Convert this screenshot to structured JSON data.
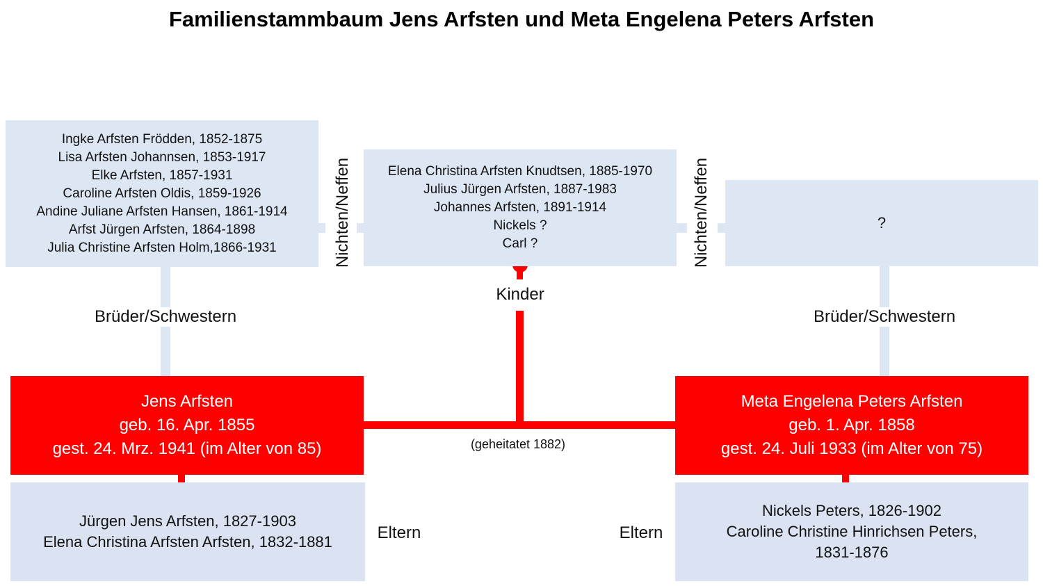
{
  "title": "Familienstammbaum Jens Arfsten und Meta Engelena Peters Arfsten",
  "left_siblings": {
    "names": [
      "Ingke Arfsten Frödden, 1852-1875",
      "Lisa Arfsten Johannsen, 1853-1917",
      "Elke Arfsten, 1857-1931",
      "Caroline Arfsten Oldis, 1859-1926",
      "Andine Juliane Arfsten Hansen, 1861-1914",
      "Arfst Jürgen Arfsten, 1864-1898",
      "Julia Christine Arfsten Holm,1866-1931"
    ],
    "label": "Brüder/Schwestern"
  },
  "children": {
    "names": [
      "Elena Christina Arfsten Knudtsen, 1885-1970",
      "Julius Jürgen Arfsten, 1887-1983",
      "Johannes Arfsten, 1891-1914",
      "Nickels ?",
      "Carl ?"
    ],
    "label": "Kinder"
  },
  "right_siblings": {
    "names": [
      "?"
    ],
    "label": "Brüder/Schwestern"
  },
  "nieces_left_label": "Nichten/Neffen",
  "nieces_right_label": "Nichten/Neffen",
  "jens": {
    "name": "Jens Arfsten",
    "born": "geb. 16. Apr. 1855",
    "died": "gest. 24. Mrz. 1941 (im Alter von 85)"
  },
  "meta": {
    "name": "Meta Engelena Peters Arfsten",
    "born": "geb. 1. Apr. 1858",
    "died": "gest. 24. Juli 1933 (im Alter von 75)"
  },
  "marriage_label": "(geheitatet 1882)",
  "jens_parents": {
    "names": [
      "Jürgen Jens Arfsten, 1827-1903",
      "Elena Christina Arfsten Arfsten, 1832-1881"
    ],
    "label": "Eltern"
  },
  "meta_parents": {
    "names": [
      "Nickels Peters, 1826-1902",
      "Caroline Christine Hinrichsen Peters,",
      "1831-1876"
    ],
    "label": "Eltern"
  },
  "colors": {
    "accent_red": "#ff0000",
    "light_box": "#dde7f4",
    "parents_box": "#dbe3f2"
  }
}
